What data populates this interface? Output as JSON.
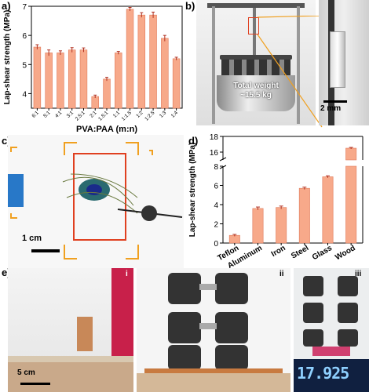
{
  "panels": {
    "a": "a)",
    "b": "b)",
    "c": "c)",
    "d": "d)",
    "e": "e)"
  },
  "panel_b": {
    "weight_label_line1": "Total weight",
    "weight_label_line2": "~15.5 kg",
    "scale_bar": "2 mm"
  },
  "panel_c": {
    "scale_bar": "1 cm"
  },
  "panel_e": {
    "sub_i": "i",
    "sub_ii": "ii",
    "sub_iii": "iii",
    "scale_bar": "5 cm",
    "scale_display": "17.925"
  },
  "colors": {
    "bar_fill": "#f7a98a",
    "bar_stroke": "#e07a5a",
    "error_bar": "#b03020",
    "orange_frame": "#f0a020",
    "red_frame": "#e04020"
  },
  "chart_data": [
    {
      "type": "bar",
      "panel": "a",
      "xlabel": "PVA:PAA (m:n)",
      "ylabel": "Lap-shear strength (MPa)",
      "ylim": [
        3.5,
        7
      ],
      "yticks": [
        4,
        5,
        6,
        7
      ],
      "categories": [
        "6:1",
        "5:1",
        "4:1",
        "3:1",
        "2.5:1",
        "2:1",
        "1.5:1",
        "1:1",
        "1:1.5",
        "1:2",
        "1:2.5",
        "1:3",
        "1:4"
      ],
      "values": [
        5.6,
        5.4,
        5.4,
        5.5,
        5.5,
        3.9,
        4.5,
        5.4,
        6.9,
        6.7,
        6.7,
        5.9,
        5.2
      ],
      "errors": [
        0.08,
        0.1,
        0.07,
        0.08,
        0.07,
        0.05,
        0.06,
        0.05,
        0.06,
        0.08,
        0.1,
        0.1,
        0.05
      ]
    },
    {
      "type": "bar",
      "panel": "d",
      "xlabel": "",
      "ylabel": "Lap-shear strength (MPa)",
      "axis_break": true,
      "lower_ylim": [
        0,
        8
      ],
      "lower_yticks": [
        0,
        2,
        4,
        6,
        8
      ],
      "upper_ylim": [
        15,
        18
      ],
      "upper_yticks": [
        16,
        18
      ],
      "categories": [
        "Teflon",
        "Aluminum",
        "Iron",
        "Steel",
        "Glass",
        "Wood"
      ],
      "values": [
        0.8,
        3.6,
        3.7,
        5.7,
        6.9,
        16.5
      ],
      "errors": [
        0.1,
        0.15,
        0.15,
        0.12,
        0.1,
        0.1
      ]
    }
  ]
}
